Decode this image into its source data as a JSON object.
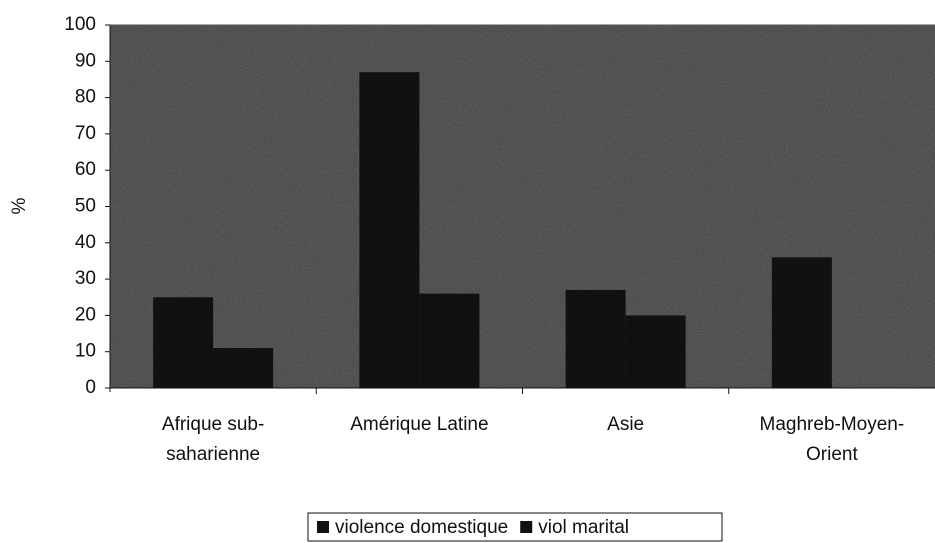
{
  "chart_data": {
    "type": "bar",
    "categories": [
      "Afrique sub-\nsaharienne",
      "Amérique Latine",
      "Asie",
      "Maghreb-Moyen-\nOrient"
    ],
    "series": [
      {
        "name": "violence domestique",
        "color": "#111111",
        "values": [
          25,
          87,
          27,
          36
        ]
      },
      {
        "name": "viol marital",
        "color": "#111111",
        "values": [
          11,
          26,
          20,
          null
        ]
      }
    ],
    "ylabel": "%",
    "ylim": [
      0,
      100
    ],
    "yticks": [
      0,
      10,
      20,
      30,
      40,
      50,
      60,
      70,
      80,
      90,
      100
    ],
    "grid": true,
    "legend": "bottom"
  }
}
